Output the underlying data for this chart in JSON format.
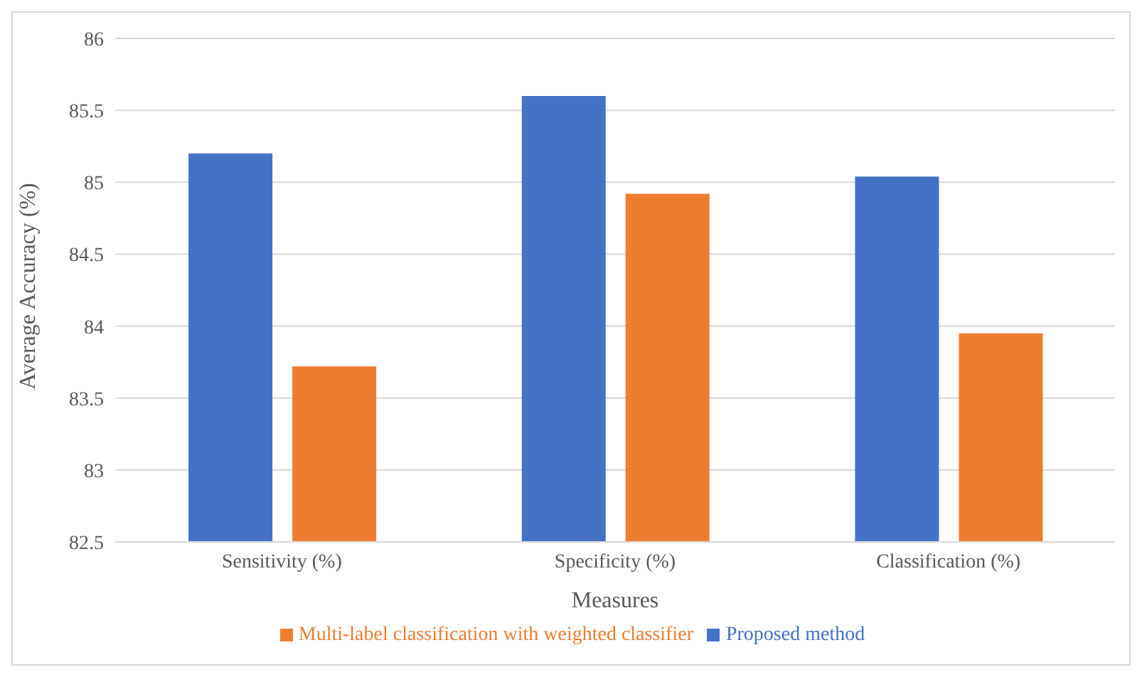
{
  "chart_data": {
    "type": "bar",
    "xlabel": "Measures",
    "ylabel": "Average Accuracy (%)",
    "categories": [
      "Sensitivity (%)",
      "Specificity (%)",
      "Classification (%)"
    ],
    "series": [
      {
        "name": "Proposed method",
        "color": "#4472c4",
        "values": [
          85.2,
          85.6,
          85.04
        ]
      },
      {
        "name": "Multi-label classification with weighted classifier",
        "color": "#ed7d31",
        "values": [
          83.72,
          84.92,
          83.95
        ]
      }
    ],
    "ylim": [
      82.5,
      86
    ],
    "yticks": [
      82.5,
      83,
      83.5,
      84,
      84.5,
      85,
      85.5,
      86
    ],
    "grid": "y",
    "legend": "bottom"
  }
}
